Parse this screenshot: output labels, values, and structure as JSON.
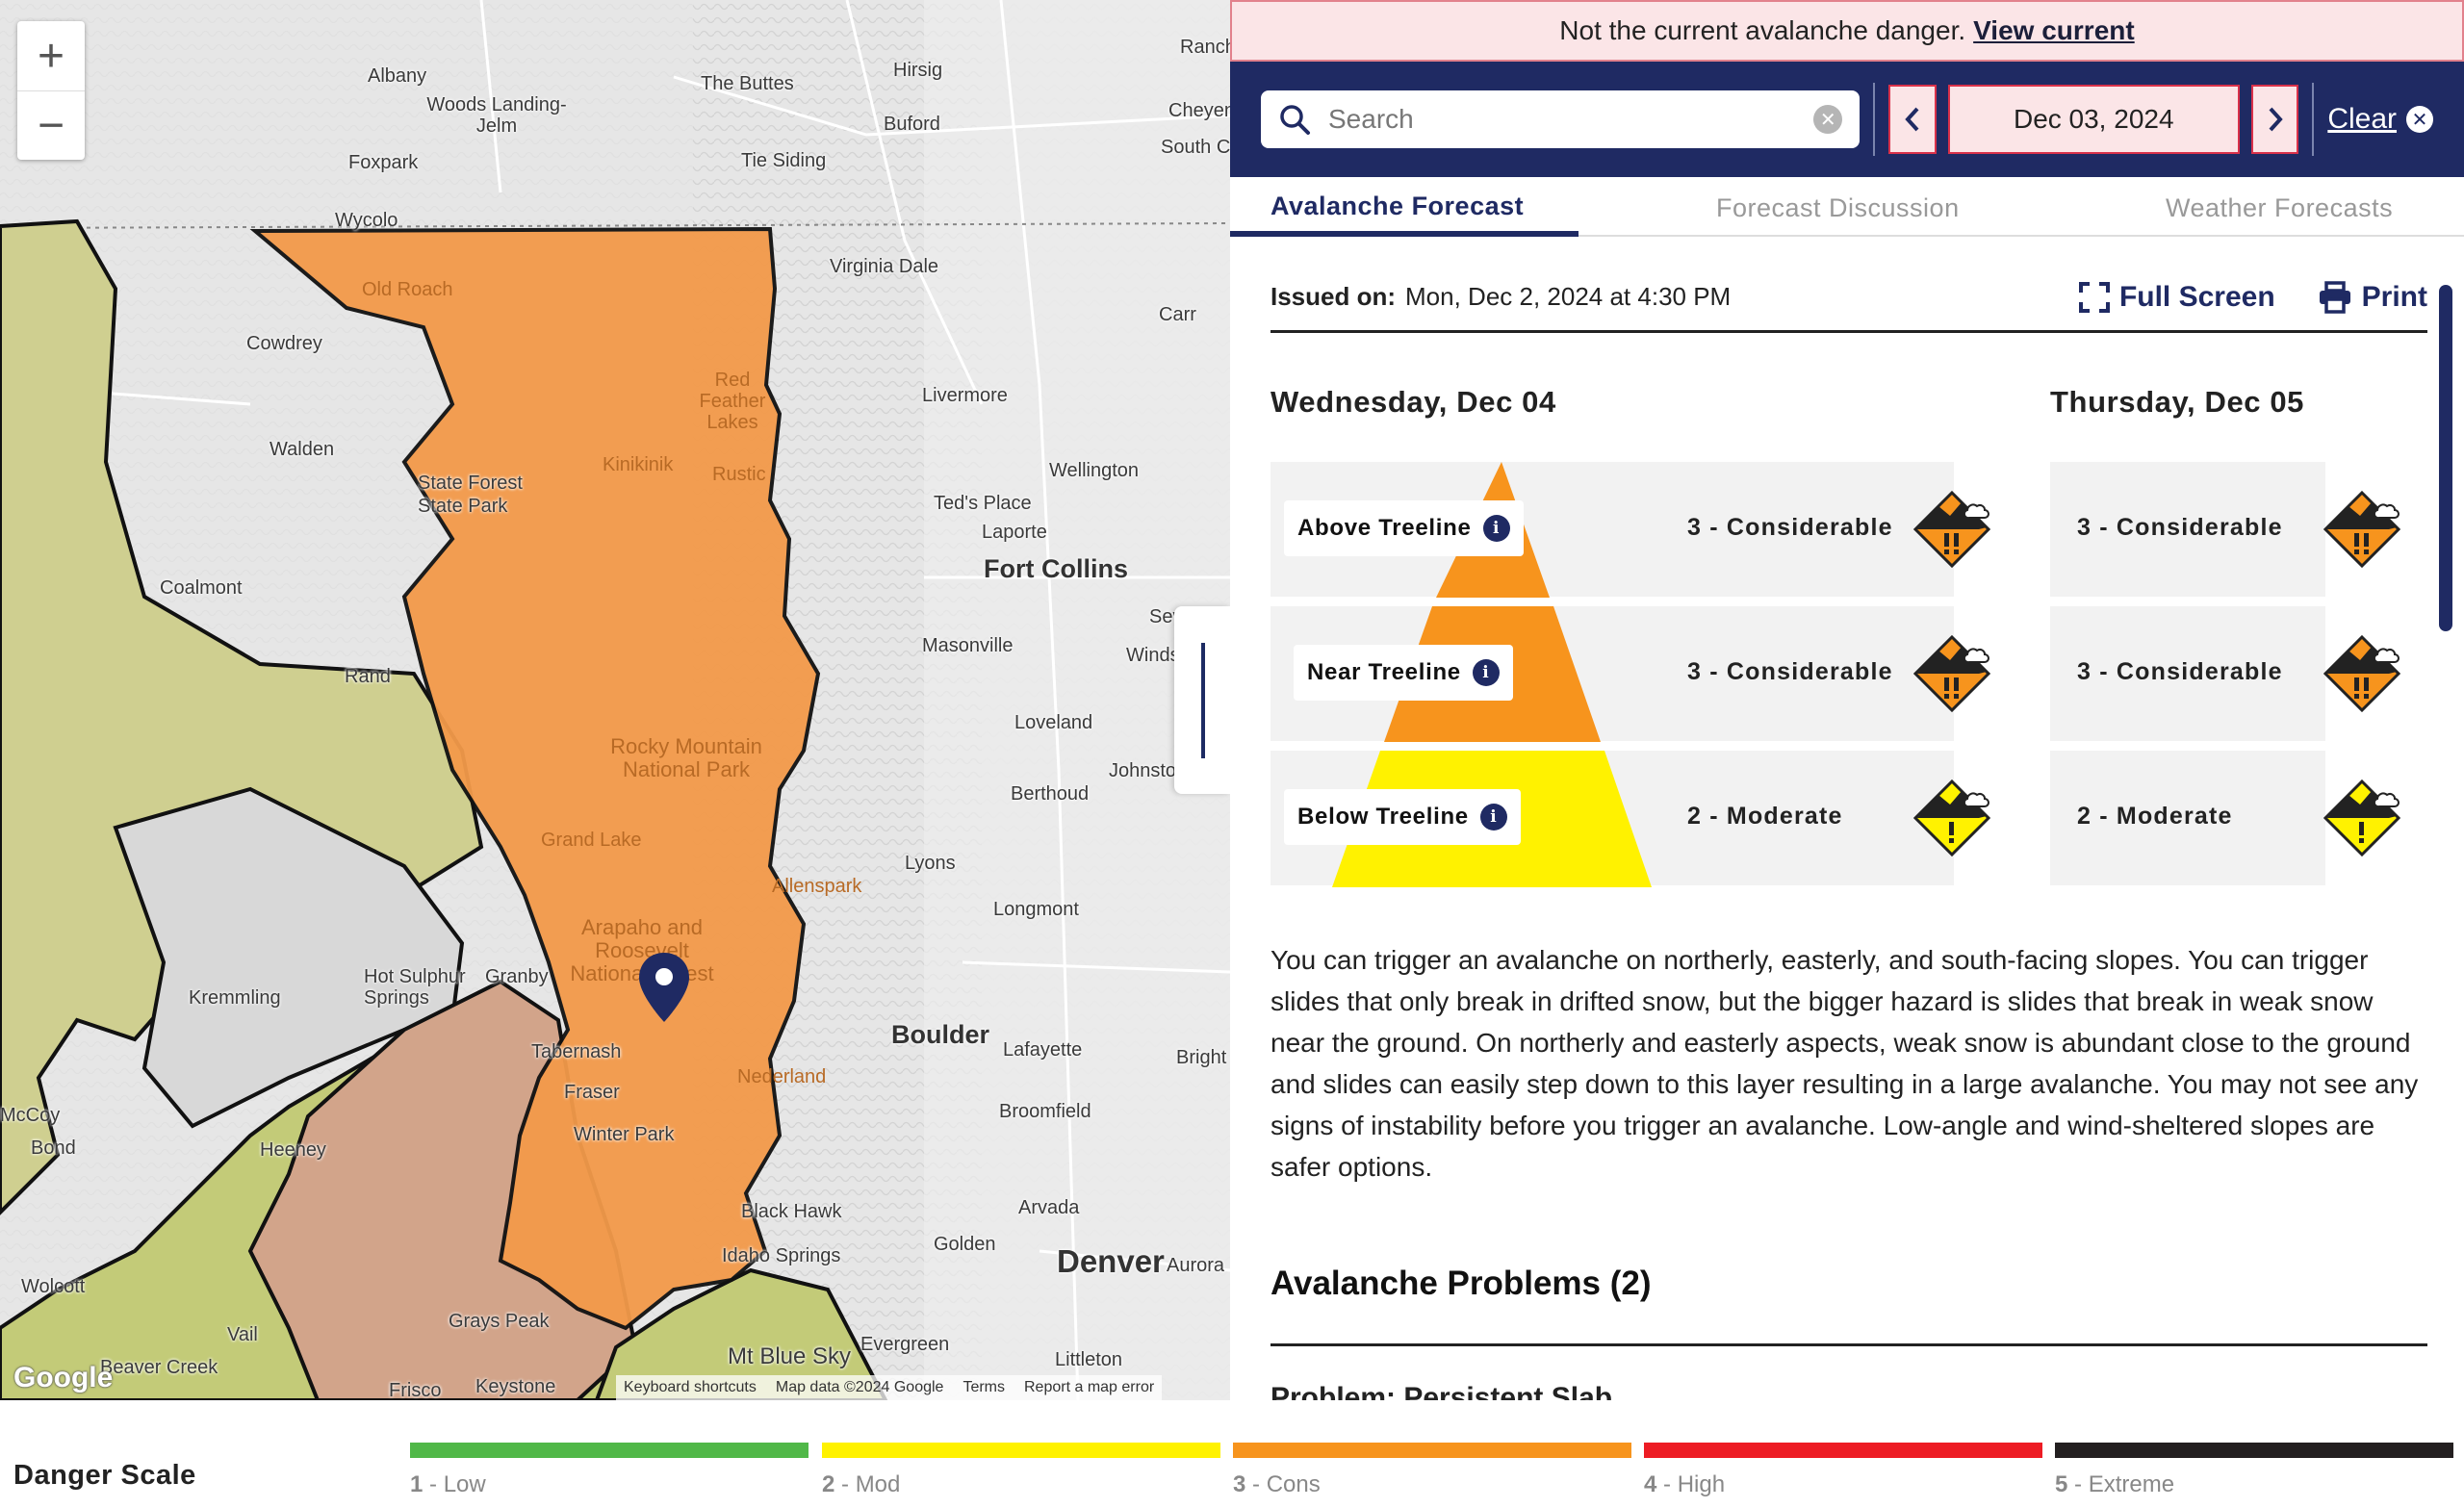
{
  "map": {
    "zoom_in": "+",
    "zoom_out": "−",
    "labels": [
      "Albany",
      "Woods Landing-Jelm",
      "Foxpark",
      "Wycolo",
      "The Buttes",
      "Hirsig",
      "Buford",
      "Tie Siding",
      "Virginia Dale",
      "Cheyenne",
      "South Ch",
      "Ranch",
      "Carr",
      "Livermore",
      "Wellington",
      "Ted's Place",
      "Laporte",
      "Fort Collins",
      "Sev",
      "Masonville",
      "Winds",
      "Loveland",
      "Johnstown",
      "Berthoud",
      "Lyons",
      "Longmont",
      "Boulder",
      "Lafayette",
      "Bright",
      "Broomfield",
      "Arvada",
      "Golden",
      "Denver",
      "Aurora",
      "Littleton",
      "Evergreen",
      "Black Hawk",
      "Idaho Springs",
      "Mt Blue Sky",
      "Cowdrey",
      "Walden",
      "State Forest State Park",
      "Coalmont",
      "Rand",
      "Kremmling",
      "Hot Sulphur Springs",
      "Granby",
      "Tabernash",
      "Fraser",
      "Winter Park",
      "Heeney",
      "McCoy",
      "Bond",
      "Wolcott",
      "Vail",
      "Beaver Creek",
      "Frisco",
      "Keystone",
      "Grays Peak",
      "Old Roach",
      "Red Feather Lakes",
      "Kinikinik",
      "Rustic",
      "Rocky Mountain National Park",
      "Grand Lake",
      "Allenspark",
      "Arapaho and Roosevelt National Forest",
      "Nederland"
    ],
    "footer": [
      "Keyboard shortcuts",
      "Map data ©2024 Google",
      "Terms",
      "Report a map error"
    ],
    "google": "Google"
  },
  "alert": {
    "text": "Not the current avalanche danger.",
    "link": "View current"
  },
  "toolbar": {
    "search_placeholder": "Search",
    "date": "Dec 03, 2024",
    "clear": "Clear"
  },
  "tabs": [
    "Avalanche Forecast",
    "Forecast Discussion",
    "Weather Forecasts"
  ],
  "forecast": {
    "issued_label": "Issued on:",
    "issued_value": "Mon, Dec 2, 2024 at 4:30 PM",
    "full_screen": "Full Screen",
    "print": "Print",
    "day1": "Wednesday, Dec 04",
    "day2": "Thursday, Dec 05",
    "bands": [
      "Above Treeline",
      "Near Treeline",
      "Below Treeline"
    ],
    "day1_ratings": [
      "3 - Considerable",
      "3 - Considerable",
      "2 - Moderate"
    ],
    "day2_ratings": [
      "3 - Considerable",
      "3 - Considerable",
      "2 - Moderate"
    ],
    "colors": {
      "considerable": "#f7941d",
      "moderate": "#fff200",
      "low": "#50b848",
      "high": "#ed1c24",
      "extreme": "#231f20",
      "navy": "#1f2a63"
    },
    "summary": "You can trigger an avalanche on northerly, easterly, and south-facing slopes. You can trigger slides that only break in drifted snow, but the bigger hazard is slides that break in weak snow near the ground. On northerly and easterly aspects, weak snow is abundant close to the ground and slides can easily step down to this layer resulting in a large avalanche. You may not see any signs of instability before you trigger an avalanche. Low-angle and wind-sheltered slopes are safer options.",
    "problems_title": "Avalanche Problems",
    "problems_count": "(2)",
    "problem_peek": "Problem: Persistent Slab"
  },
  "scale": {
    "title": "Danger Scale",
    "levels": [
      {
        "num": "1",
        "name": " - Low"
      },
      {
        "num": "2",
        "name": " - Mod"
      },
      {
        "num": "3",
        "name": " - Cons"
      },
      {
        "num": "4",
        "name": " - High"
      },
      {
        "num": "5",
        "name": " - Extreme"
      }
    ]
  }
}
